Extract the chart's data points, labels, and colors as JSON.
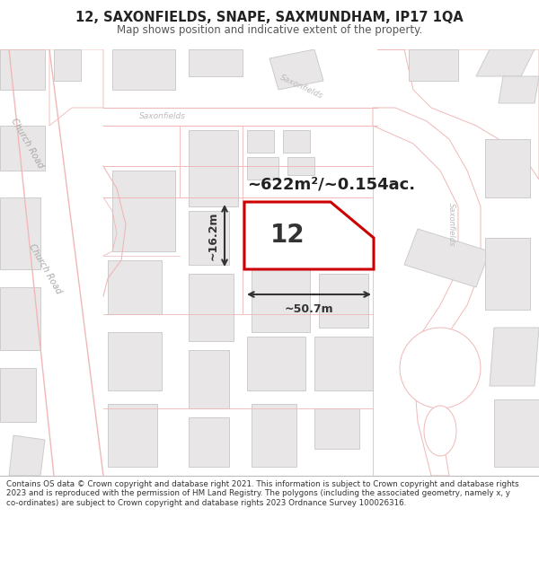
{
  "title": "12, SAXONFIELDS, SNAPE, SAXMUNDHAM, IP17 1QA",
  "subtitle": "Map shows position and indicative extent of the property.",
  "footer": "Contains OS data © Crown copyright and database right 2021. This information is subject to Crown copyright and database rights 2023 and is reproduced with the permission of HM Land Registry. The polygons (including the associated geometry, namely x, y co-ordinates) are subject to Crown copyright and database rights 2023 Ordnance Survey 100026316.",
  "area_label": "~622m²/~0.154ac.",
  "width_label": "~50.7m",
  "height_label": "~16.2m",
  "property_number": "12",
  "map_bg": "#f5f3f3",
  "road_fill": "#ffffff",
  "road_outline": "#f0b8b8",
  "building_fill": "#e8e6e6",
  "building_edge": "#cccccc",
  "highlight_color": "#cc0000",
  "highlight_fill": "#ffffff",
  "label_color": "#aaaaaa",
  "road_label_color": "#bbbbbb",
  "dim_color": "#333333",
  "title_color": "#222222",
  "footer_color": "#333333"
}
